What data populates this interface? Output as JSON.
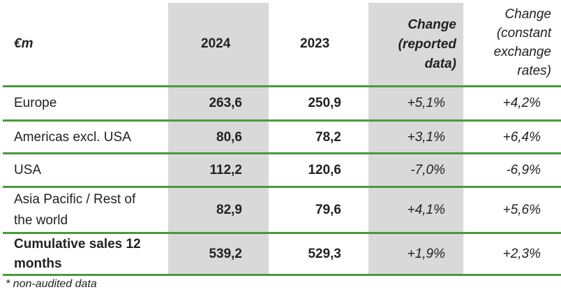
{
  "table": {
    "headers": {
      "label": "€m",
      "y2024": "2024",
      "y2023": "2023",
      "change_reported": [
        "Change",
        "(reported",
        "data)"
      ],
      "change_constant": [
        "Change",
        "(constant",
        "exchange",
        "rates)"
      ]
    },
    "rows": [
      {
        "region": [
          "Europe"
        ],
        "v2024": "263,6",
        "v2023": "250,9",
        "reported": "+5,1%",
        "constant": "+4,2%"
      },
      {
        "region": [
          "Americas excl. USA"
        ],
        "v2024": "80,6",
        "v2023": "78,2",
        "reported": "+3,1%",
        "constant": "+6,4%"
      },
      {
        "region": [
          "USA"
        ],
        "v2024": "112,2",
        "v2023": "120,6",
        "reported": "-7,0%",
        "constant": "-6,9%"
      },
      {
        "region": [
          "Asia Pacific / Rest of",
          "the world"
        ],
        "v2024": "82,9",
        "v2023": "79,6",
        "reported": "+4,1%",
        "constant": "+5,6%"
      },
      {
        "region": [
          "Cumulative sales 12",
          "months"
        ],
        "v2024": "539,2",
        "v2023": "529,3",
        "reported": "+1,9%",
        "constant": "+2,3%",
        "bold": true
      }
    ],
    "footnote": "* non-audited data"
  }
}
